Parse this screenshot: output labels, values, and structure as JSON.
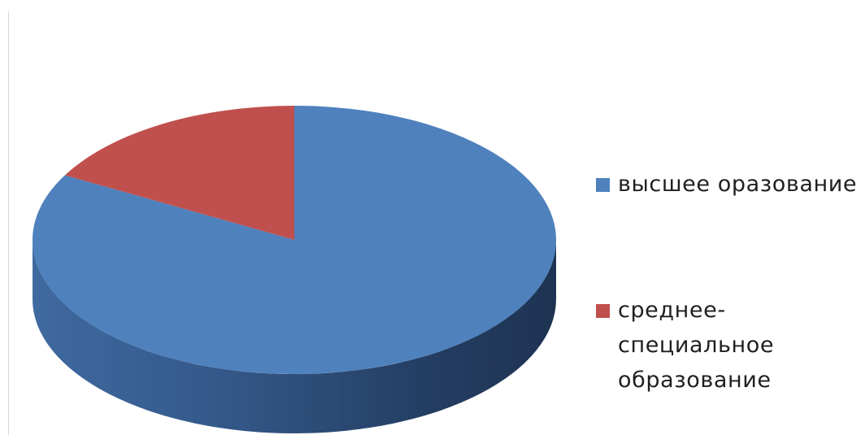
{
  "chart_data": {
    "type": "pie",
    "style": "3d",
    "slices": [
      {
        "label": "высшее оразование",
        "value": 83,
        "color": "#4f81bd"
      },
      {
        "label": "среднее-специальное образование",
        "value": 17,
        "color": "#c0504d"
      }
    ],
    "legend": {
      "placement": "right",
      "entries": [
        {
          "lines": [
            "высшее оразование"
          ],
          "color": "#4f81bd"
        },
        {
          "lines": [
            "среднее-",
            "специальное",
            "образование"
          ],
          "color": "#c0504d"
        }
      ]
    }
  }
}
